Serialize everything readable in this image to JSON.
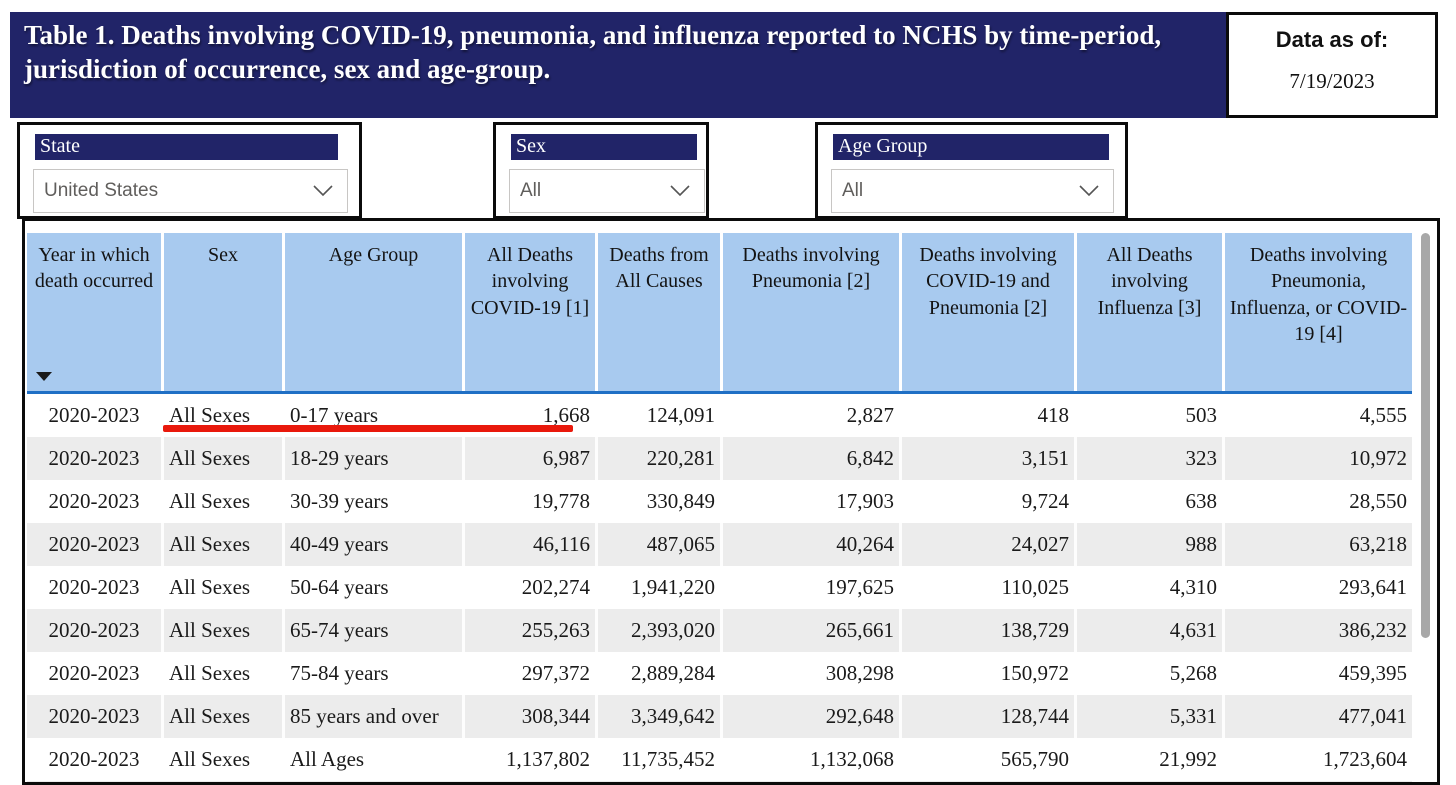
{
  "banner": {
    "title": "Table 1. Deaths involving COVID-19, pneumonia, and influenza reported to NCHS by time-period, jurisdiction of occurrence, sex and age-group."
  },
  "data_as_of": {
    "label": "Data as of:",
    "date": "7/19/2023"
  },
  "filters": [
    {
      "label": "State",
      "value": "United States"
    },
    {
      "label": "Sex",
      "value": "All"
    },
    {
      "label": "Age Group",
      "value": "All"
    }
  ],
  "table": {
    "columns": [
      "Year in which death occurred",
      "Sex",
      "Age Group",
      "All Deaths involving COVID-19 [1]",
      "Deaths from All Causes",
      "Deaths involving Pneumonia [2]",
      "Deaths involving COVID-19 and Pneumonia [2]",
      "All Deaths involving Influenza [3]",
      "Deaths involving Pneumonia, Influenza, or COVID-19 [4]"
    ],
    "sorted_column": "Year in which death occurred",
    "sort_direction": "descending",
    "rows": [
      [
        "2020-2023",
        "All Sexes",
        "0-17 years",
        "1,668",
        "124,091",
        "2,827",
        "418",
        "503",
        "4,555"
      ],
      [
        "2020-2023",
        "All Sexes",
        "18-29 years",
        "6,987",
        "220,281",
        "6,842",
        "3,151",
        "323",
        "10,972"
      ],
      [
        "2020-2023",
        "All Sexes",
        "30-39 years",
        "19,778",
        "330,849",
        "17,903",
        "9,724",
        "638",
        "28,550"
      ],
      [
        "2020-2023",
        "All Sexes",
        "40-49 years",
        "46,116",
        "487,065",
        "40,264",
        "24,027",
        "988",
        "63,218"
      ],
      [
        "2020-2023",
        "All Sexes",
        "50-64 years",
        "202,274",
        "1,941,220",
        "197,625",
        "110,025",
        "4,310",
        "293,641"
      ],
      [
        "2020-2023",
        "All Sexes",
        "65-74 years",
        "255,263",
        "2,393,020",
        "265,661",
        "138,729",
        "4,631",
        "386,232"
      ],
      [
        "2020-2023",
        "All Sexes",
        "75-84 years",
        "297,372",
        "2,889,284",
        "308,298",
        "150,972",
        "5,268",
        "459,395"
      ],
      [
        "2020-2023",
        "All Sexes",
        "85 years and over",
        "308,344",
        "3,349,642",
        "292,648",
        "128,744",
        "5,331",
        "477,041"
      ],
      [
        "2020-2023",
        "All Sexes",
        "All Ages",
        "1,137,802",
        "11,735,452",
        "1,132,068",
        "565,790",
        "21,992",
        "1,723,604"
      ]
    ]
  },
  "annotation": {
    "type": "red-underline",
    "target_row": "0-17 years",
    "color": "#e9190c"
  },
  "colors": {
    "banner_navy": "#212468",
    "table_header_blue": "#a8caef",
    "header_divider_blue": "#1f6fc5",
    "alt_row_gray": "#ececec",
    "annotation_red": "#e9190c"
  },
  "icons": {
    "dropdown": "chevron-down",
    "sort": "triangle-down"
  }
}
